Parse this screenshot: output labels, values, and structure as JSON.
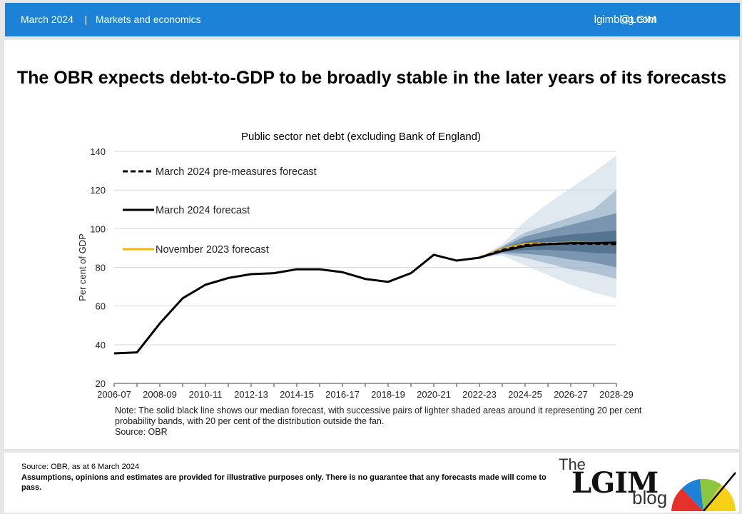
{
  "header": {
    "date": "March 2024",
    "separator": "|",
    "section": "Markets and economics",
    "site": "lgimblog.com",
    "handle": "@LGIM"
  },
  "title": "The OBR expects debt-to-GDP to be broadly stable in the later years of its forecasts",
  "subtitle": "Public sector net debt (excluding Bank of England)",
  "note": "Note: The solid black line shows our median forecast, with successive pairs of lighter shaded areas around it representing 20 per cent probability bands, with 20 per cent of the distribution outside the fan.",
  "note_source": "Source: OBR",
  "footer": {
    "source": "Source: OBR, as at 6 March 2024",
    "disclaimer": "Assumptions, opinions and estimates are provided for illustrative purposes only. There is no guarantee that any forecasts made will come to pass."
  },
  "logo": {
    "the": "The",
    "lgim": "LGIM",
    "blog": "blog"
  },
  "colors": {
    "header_bg": "#1b82d7",
    "forecast_line": "#000000",
    "november_line": "#f2b705",
    "fan_inner": "#4d6f8f",
    "fan_mid": "#8aa6c0",
    "fan_outer": "#c6d5e3"
  },
  "chart_data": {
    "type": "line",
    "title": "Public sector net debt (excluding Bank of England)",
    "ylabel": "Per cent of GDP",
    "xlabel": "",
    "ylim": [
      20,
      140
    ],
    "yticks": [
      20,
      40,
      60,
      80,
      100,
      120,
      140
    ],
    "grid": true,
    "legend_position": "top-left",
    "x": [
      "2006-07",
      "2007-08",
      "2008-09",
      "2009-10",
      "2010-11",
      "2011-12",
      "2012-13",
      "2013-14",
      "2014-15",
      "2015-16",
      "2016-17",
      "2017-18",
      "2018-19",
      "2019-20",
      "2020-21",
      "2021-22",
      "2022-23",
      "2023-24",
      "2024-25",
      "2025-26",
      "2026-27",
      "2027-28",
      "2028-29"
    ],
    "xtick_labels": [
      "2006-07",
      "2008-09",
      "2010-11",
      "2012-13",
      "2014-15",
      "2016-17",
      "2018-19",
      "2020-21",
      "2022-23",
      "2024-25",
      "2026-27",
      "2028-29"
    ],
    "series": [
      {
        "name": "March 2024 pre-measures forecast",
        "style": "dashed",
        "color": "#000000",
        "x": [
          "2022-23",
          "2023-24",
          "2024-25",
          "2025-26",
          "2026-27",
          "2027-28",
          "2028-29"
        ],
        "values": [
          85.0,
          89.0,
          91.5,
          92.2,
          92.3,
          92.2,
          92.0
        ]
      },
      {
        "name": "March 2024 forecast",
        "style": "solid",
        "color": "#000000",
        "x": [
          "2006-07",
          "2007-08",
          "2008-09",
          "2009-10",
          "2010-11",
          "2011-12",
          "2012-13",
          "2013-14",
          "2014-15",
          "2015-16",
          "2016-17",
          "2017-18",
          "2018-19",
          "2019-20",
          "2020-21",
          "2021-22",
          "2022-23",
          "2023-24",
          "2024-25",
          "2025-26",
          "2026-27",
          "2027-28",
          "2028-29"
        ],
        "values": [
          35.5,
          36.0,
          51.0,
          64.0,
          71.0,
          74.5,
          76.5,
          77.0,
          79.0,
          79.0,
          77.5,
          74.0,
          72.5,
          77.0,
          86.5,
          83.5,
          85.0,
          88.5,
          91.0,
          92.0,
          92.5,
          92.5,
          92.8
        ]
      },
      {
        "name": "November 2023 forecast",
        "style": "solid",
        "color": "#f2b705",
        "x": [
          "2022-23",
          "2023-24",
          "2024-25",
          "2025-26",
          "2026-27",
          "2027-28",
          "2028-29"
        ],
        "values": [
          85.0,
          89.5,
          92.0,
          92.5,
          92.7,
          92.6,
          92.5
        ]
      }
    ],
    "fan": {
      "x": [
        "2022-23",
        "2023-24",
        "2024-25",
        "2025-26",
        "2026-27",
        "2027-28",
        "2028-29"
      ],
      "bands": [
        {
          "level": "outer",
          "lower": [
            85.0,
            86.0,
            81.0,
            76.0,
            71.0,
            67.0,
            64.0
          ],
          "upper": [
            85.0,
            92.0,
            104.0,
            113.0,
            121.0,
            129.0,
            138.0
          ]
        },
        {
          "level": "mid",
          "lower": [
            85.0,
            87.0,
            85.0,
            82.0,
            79.0,
            77.0,
            74.0
          ],
          "upper": [
            85.0,
            91.0,
            98.0,
            102.0,
            106.0,
            110.0,
            120.0
          ]
        },
        {
          "level": "inner",
          "lower": [
            85.0,
            87.5,
            87.0,
            86.0,
            84.0,
            82.5,
            80.0
          ],
          "upper": [
            85.0,
            90.5,
            96.0,
            99.0,
            102.0,
            105.0,
            108.0
          ]
        },
        {
          "level": "core",
          "lower": [
            85.0,
            88.0,
            89.0,
            89.0,
            88.5,
            87.5,
            87.0
          ],
          "upper": [
            85.0,
            89.8,
            93.5,
            95.5,
            97.0,
            98.0,
            99.0
          ]
        }
      ]
    }
  }
}
